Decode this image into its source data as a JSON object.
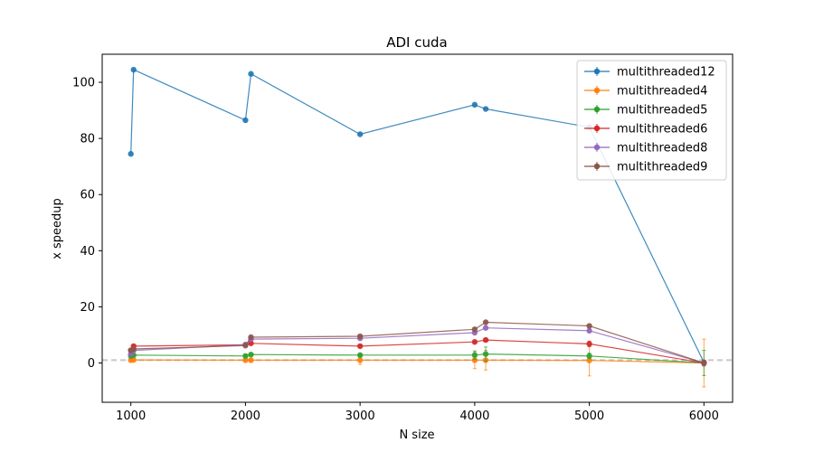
{
  "chart_data": {
    "type": "line",
    "title": "ADI cuda",
    "xlabel": "N size",
    "ylabel": "x speedup",
    "xlim": [
      750,
      6250
    ],
    "ylim": [
      -14,
      110
    ],
    "xticks": [
      1000,
      2000,
      3000,
      4000,
      5000,
      6000
    ],
    "yticks": [
      0,
      20,
      40,
      60,
      80,
      100
    ],
    "grid": false,
    "legend_position": "top-right",
    "reference_line": {
      "y": 1,
      "style": "dashed",
      "color": "#c8c8c8"
    },
    "series": [
      {
        "name": "multithreaded12",
        "color": "#1f77b4",
        "x": [
          1000,
          1024,
          2000,
          2048,
          3000,
          4000,
          4096,
          5000,
          6000
        ],
        "y": [
          74.5,
          104.5,
          86.5,
          103,
          81.5,
          92,
          90.5,
          84,
          0.2
        ],
        "err": [
          0,
          0,
          0,
          0,
          0,
          0,
          0,
          0,
          0
        ]
      },
      {
        "name": "multithreaded4",
        "color": "#ff7f0e",
        "x": [
          1000,
          1024,
          2000,
          2048,
          3000,
          4000,
          4096,
          5000,
          6000
        ],
        "y": [
          1.0,
          1.1,
          1.0,
          1.0,
          1.0,
          1.0,
          1.0,
          0.9,
          0.0
        ],
        "err": [
          0.3,
          0.3,
          0.3,
          0.3,
          1.5,
          3.0,
          3.5,
          5.5,
          8.5
        ]
      },
      {
        "name": "multithreaded5",
        "color": "#2ca02c",
        "x": [
          1000,
          1024,
          2000,
          2048,
          3000,
          4000,
          4096,
          5000,
          6000
        ],
        "y": [
          2.5,
          2.8,
          2.5,
          3.0,
          2.8,
          2.8,
          3.2,
          2.5,
          0.0
        ],
        "err": [
          0.3,
          0.3,
          0.3,
          0.3,
          0.5,
          1.5,
          2.5,
          1.0,
          4.5
        ]
      },
      {
        "name": "multithreaded6",
        "color": "#d62728",
        "x": [
          1000,
          1024,
          2000,
          2048,
          3000,
          4000,
          4096,
          5000,
          6000
        ],
        "y": [
          4.5,
          6.0,
          6.5,
          7.0,
          6.0,
          7.5,
          8.2,
          6.8,
          0.0
        ],
        "err": [
          0.3,
          0.3,
          0.3,
          0.3,
          0.5,
          0.5,
          0.5,
          1.0,
          1.0
        ]
      },
      {
        "name": "multithreaded8",
        "color": "#9467bd",
        "x": [
          1000,
          1024,
          2000,
          2048,
          3000,
          4000,
          4096,
          5000,
          6000
        ],
        "y": [
          3.2,
          4.5,
          6.5,
          8.5,
          8.8,
          10.8,
          12.5,
          11.5,
          0.0
        ],
        "err": [
          0.3,
          0.3,
          0.3,
          0.3,
          0.5,
          0.5,
          0.5,
          0.5,
          1.0
        ]
      },
      {
        "name": "multithreaded9",
        "color": "#8c564b",
        "x": [
          1000,
          1024,
          2000,
          2048,
          3000,
          4000,
          4096,
          5000,
          6000
        ],
        "y": [
          4.5,
          5.0,
          6.2,
          9.2,
          9.5,
          12.0,
          14.5,
          13.2,
          0.0
        ],
        "err": [
          0.3,
          0.3,
          0.3,
          0.3,
          0.5,
          0.5,
          0.5,
          0.5,
          1.0
        ]
      }
    ]
  }
}
